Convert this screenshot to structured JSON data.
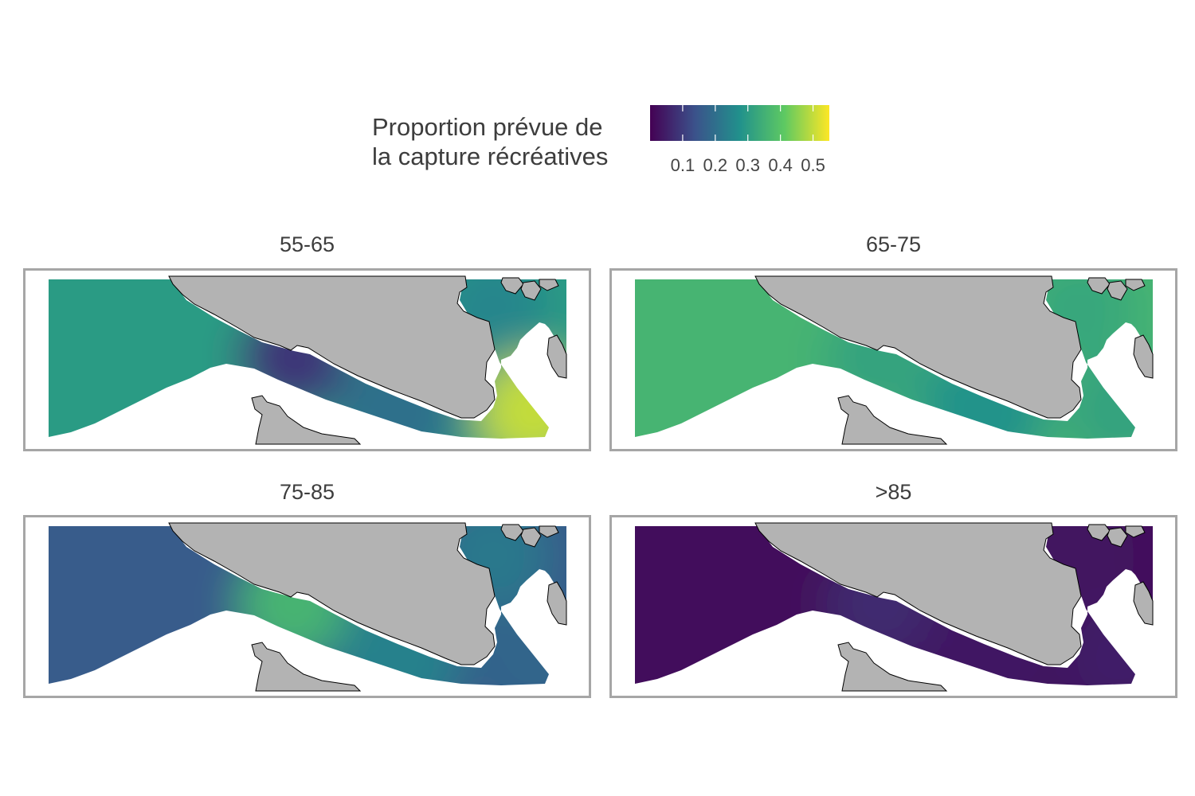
{
  "legend": {
    "title_line1": "Proportion prévue de",
    "title_line2": "la capture récréatives",
    "tick_labels": [
      "0.1",
      "0.2",
      "0.3",
      "0.4",
      "0.5"
    ],
    "ticks": [
      0.1,
      0.2,
      0.3,
      0.4,
      0.5
    ],
    "range": [
      0.0,
      0.55
    ],
    "palette": [
      "#440154",
      "#3b528b",
      "#21918c",
      "#5ec962",
      "#fde725"
    ]
  },
  "colors": {
    "land": "#b3b3b3",
    "coast_line": "#000000",
    "panel_border": "#a6a6a6"
  },
  "panels": [
    {
      "title": "55-65",
      "values": {
        "west": 0.3,
        "mid_channel": 0.09,
        "narrows": 0.2,
        "inlets": 0.25,
        "south_east": 0.5
      }
    },
    {
      "title": "65-75",
      "values": {
        "west": 0.36,
        "mid_channel": 0.32,
        "narrows": 0.28,
        "inlets": 0.33,
        "south_east": 0.32
      }
    },
    {
      "title": "75-85",
      "values": {
        "west": 0.16,
        "mid_channel": 0.36,
        "narrows": 0.24,
        "inlets": 0.22,
        "south_east": 0.18
      }
    },
    {
      "title": ">85",
      "values": {
        "west": 0.02,
        "mid_channel": 0.07,
        "narrows": 0.04,
        "inlets": 0.03,
        "south_east": 0.05
      }
    }
  ]
}
